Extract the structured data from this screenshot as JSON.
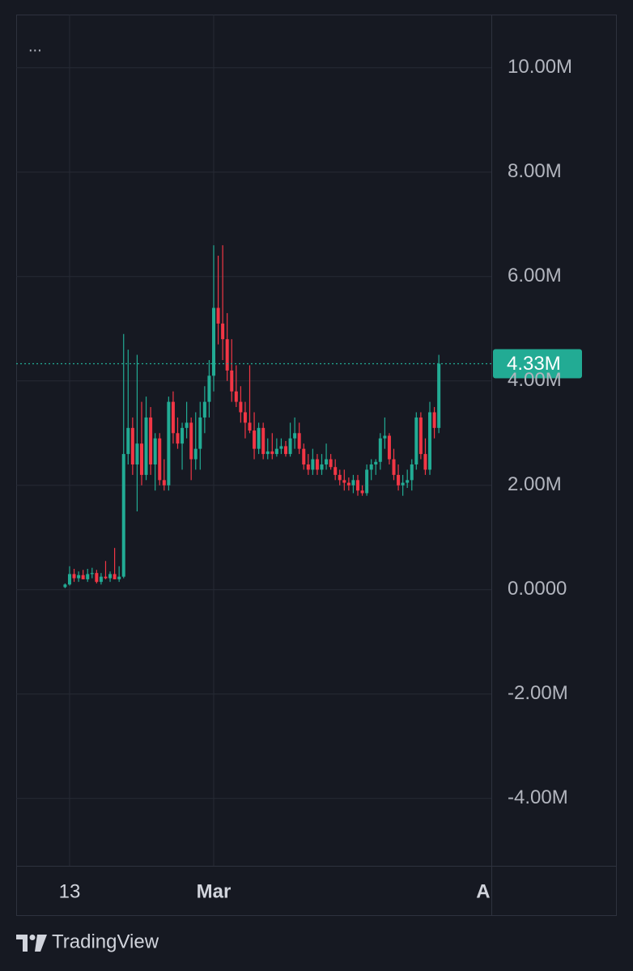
{
  "menu": "...",
  "brand": "TradingView",
  "chart_data": {
    "type": "candlestick",
    "up_color": "#22ab94",
    "down_color": "#f23645",
    "xlim": [
      -5.93,
      46.83
    ],
    "xticks": [
      {
        "value": 0,
        "label": "13"
      },
      {
        "value": 16,
        "label": "Mar"
      },
      {
        "value": 47,
        "label": "Apr"
      }
    ],
    "ylim": [
      -5.29,
      11.02
    ],
    "yticks": [
      {
        "value": 10,
        "label": "10.00M"
      },
      {
        "value": 8,
        "label": "8.00M"
      },
      {
        "value": 6,
        "label": "6.00M"
      },
      {
        "value": 4,
        "label": "4.00M"
      },
      {
        "value": 2,
        "label": "2.00M"
      },
      {
        "value": 0,
        "label": "0.0000"
      },
      {
        "value": -2,
        "label": "-2.00M"
      },
      {
        "value": -4,
        "label": "-4.00M"
      }
    ],
    "grid": true,
    "last_value": 4.33,
    "last_value_label": "4.33M",
    "x": [
      -0.5,
      0,
      0.5,
      1,
      1.5,
      2,
      2.5,
      3,
      3.5,
      4,
      4.5,
      5,
      5.5,
      6,
      6.5,
      7,
      7.5,
      8,
      8.5,
      9,
      9.5,
      10,
      10.5,
      11,
      11.5,
      12,
      12.5,
      13,
      13.5,
      14,
      14.5,
      15,
      15.5,
      16,
      16.5,
      17,
      17.5,
      18,
      18.5,
      19,
      19.5,
      20,
      20.5,
      21,
      21.5,
      22,
      22.5,
      23,
      23.5,
      24,
      24.5,
      25,
      25.5,
      26,
      26.5,
      27,
      27.5,
      28,
      28.5,
      29,
      29.5,
      30,
      30.5,
      31,
      31.5,
      32,
      32.5,
      33,
      33.5,
      34,
      34.5,
      35,
      35.5,
      36,
      36.5,
      37,
      37.5,
      38,
      38.5,
      39,
      39.5,
      40,
      40.5,
      41
    ],
    "open": [
      0.05,
      0.1,
      0.3,
      0.22,
      0.28,
      0.2,
      0.3,
      0.32,
      0.15,
      0.25,
      0.22,
      0.3,
      0.2,
      0.25,
      2.6,
      3.1,
      2.4,
      2.8,
      2.2,
      3.3,
      2.4,
      2.9,
      2.1,
      2.0,
      3.6,
      3.0,
      2.8,
      3.1,
      3.2,
      2.5,
      2.7,
      3.3,
      3.6,
      4.1,
      5.4,
      5.1,
      4.8,
      4.2,
      3.8,
      3.6,
      3.4,
      3.2,
      3.05,
      2.7,
      3.1,
      2.6,
      2.65,
      2.6,
      2.7,
      2.75,
      2.6,
      2.9,
      3.0,
      2.7,
      2.4,
      2.3,
      2.5,
      2.3,
      2.4,
      2.5,
      2.35,
      2.2,
      2.1,
      2.05,
      2.0,
      2.1,
      1.9,
      1.85,
      2.3,
      2.4,
      2.45,
      2.9,
      2.95,
      2.5,
      2.2,
      2.0,
      2.05,
      2.1,
      2.4,
      3.3,
      2.6,
      2.3,
      3.4,
      3.1
    ],
    "high": [
      0.12,
      0.45,
      0.4,
      0.35,
      0.38,
      0.4,
      0.42,
      0.38,
      0.32,
      0.55,
      0.35,
      0.8,
      0.45,
      4.9,
      4.6,
      3.3,
      4.5,
      3.6,
      3.7,
      3.5,
      3.0,
      3.0,
      2.5,
      3.7,
      3.8,
      3.3,
      3.2,
      3.6,
      3.3,
      3.4,
      3.6,
      3.9,
      4.4,
      6.6,
      6.4,
      6.6,
      5.3,
      4.8,
      4.3,
      3.9,
      3.6,
      4.3,
      3.4,
      3.2,
      3.2,
      2.9,
      3.0,
      2.9,
      2.9,
      2.85,
      3.2,
      3.3,
      3.2,
      2.8,
      2.6,
      2.7,
      2.6,
      2.6,
      2.8,
      2.6,
      2.5,
      2.3,
      2.3,
      2.15,
      2.2,
      2.2,
      2.0,
      2.4,
      2.5,
      2.5,
      3.0,
      3.3,
      3.0,
      2.7,
      2.4,
      2.2,
      2.3,
      2.5,
      3.4,
      3.4,
      2.9,
      3.6,
      3.5,
      4.5
    ],
    "low": [
      0.03,
      0.08,
      0.15,
      0.15,
      0.2,
      0.15,
      0.22,
      0.12,
      0.1,
      0.2,
      0.15,
      0.2,
      0.15,
      0.22,
      2.4,
      2.2,
      1.5,
      2.0,
      2.1,
      2.2,
      1.9,
      2.0,
      1.9,
      1.9,
      2.8,
      2.7,
      2.3,
      2.9,
      2.1,
      2.3,
      2.3,
      3.0,
      3.3,
      3.8,
      4.7,
      4.4,
      4.0,
      3.6,
      3.5,
      3.2,
      2.9,
      3.0,
      2.5,
      2.6,
      2.5,
      2.5,
      2.5,
      2.55,
      2.6,
      2.55,
      2.55,
      2.7,
      2.6,
      2.3,
      2.2,
      2.2,
      2.2,
      2.2,
      2.3,
      2.3,
      2.1,
      2.0,
      1.9,
      1.9,
      1.85,
      1.8,
      1.8,
      1.8,
      2.1,
      2.2,
      2.3,
      2.7,
      2.4,
      2.1,
      1.9,
      1.8,
      1.95,
      1.9,
      2.3,
      2.5,
      2.2,
      2.2,
      2.9,
      3.0
    ],
    "close": [
      0.1,
      0.3,
      0.22,
      0.28,
      0.2,
      0.3,
      0.32,
      0.15,
      0.25,
      0.22,
      0.3,
      0.2,
      0.25,
      2.6,
      3.1,
      2.4,
      2.8,
      2.2,
      3.3,
      2.4,
      2.9,
      2.1,
      2.0,
      3.6,
      3.0,
      2.8,
      3.1,
      3.2,
      2.5,
      2.7,
      3.3,
      3.6,
      4.1,
      5.4,
      5.1,
      4.8,
      4.2,
      3.8,
      3.6,
      3.4,
      3.2,
      3.05,
      2.7,
      3.1,
      2.6,
      2.65,
      2.6,
      2.7,
      2.75,
      2.6,
      2.9,
      3.0,
      2.7,
      2.4,
      2.3,
      2.5,
      2.3,
      2.4,
      2.5,
      2.35,
      2.2,
      2.1,
      2.05,
      2.0,
      2.1,
      1.9,
      1.85,
      2.3,
      2.4,
      2.45,
      2.9,
      2.95,
      2.5,
      2.2,
      2.0,
      2.05,
      2.1,
      2.4,
      3.3,
      2.6,
      2.3,
      3.4,
      3.1,
      4.33
    ]
  }
}
